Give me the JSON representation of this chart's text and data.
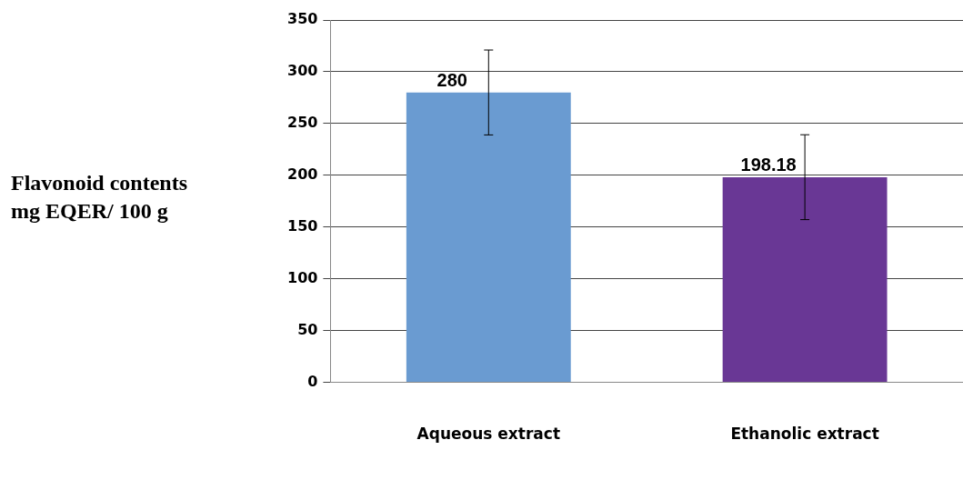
{
  "chart_data": {
    "type": "bar",
    "ylabel": "Flavonoid contents mg EQER/ 100 g",
    "categories": [
      "Aqueous extract",
      "Ethanolic extract"
    ],
    "values": [
      280,
      198.18
    ],
    "colors": [
      "#6a9bd1",
      "#693795"
    ],
    "errors": [
      41,
      41
    ],
    "ylim": [
      0,
      350
    ],
    "yticks": [
      0,
      50,
      100,
      150,
      200,
      250,
      300,
      350
    ],
    "grid": "y",
    "data_labels": true
  }
}
